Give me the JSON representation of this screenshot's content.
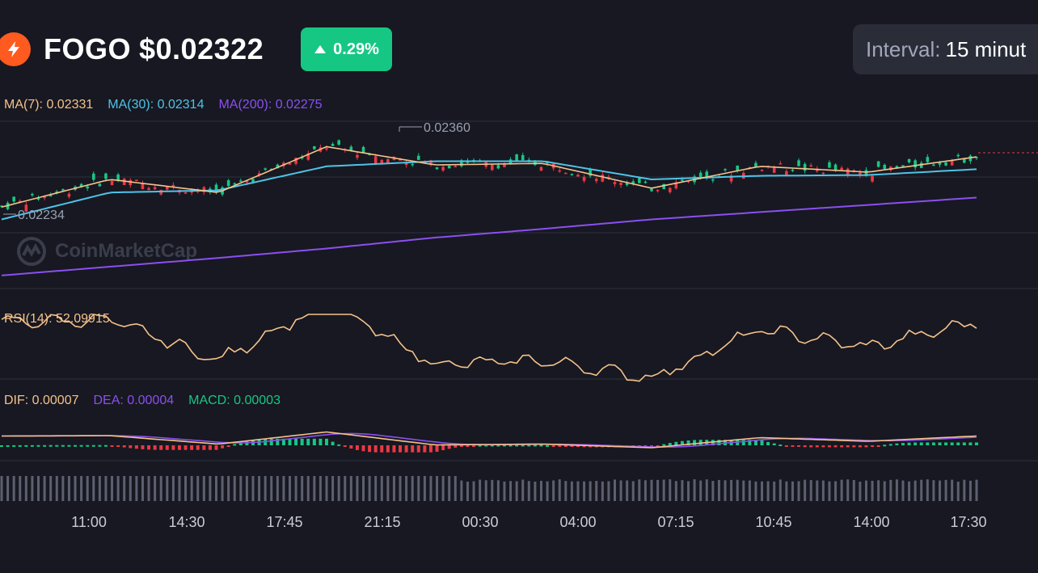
{
  "header": {
    "symbol": "FOGO",
    "price": "$0.02322",
    "change": "0.29%",
    "interval_label": "Interval:",
    "interval_value": "15 minut"
  },
  "legend": {
    "ma7": "MA(7): 0.02331",
    "ma30": "MA(30): 0.02314",
    "ma200": "MA(200): 0.02275",
    "rsi": "RSI(14): 52.09915",
    "dif": "DIF: 0.00007",
    "dea": "DEA: 0.00004",
    "macd": "MACD: 0.00003"
  },
  "price_markers": {
    "high": "0.02360",
    "low": "0.02234"
  },
  "watermark": "CoinMarketCap",
  "x_axis": [
    "11:00",
    "14:30",
    "17:45",
    "21:15",
    "00:30",
    "04:00",
    "07:15",
    "10:45",
    "14:00",
    "17:30"
  ],
  "colors": {
    "background": "#171821",
    "up": "#16c784",
    "down": "#ea3943",
    "ma7": "#f5c28b",
    "ma30": "#4fc3e8",
    "ma200": "#8b4ff0",
    "rsi": "#f5c28b",
    "dif": "#f5c28b",
    "dea": "#8b4ff0",
    "macd": "#16c784",
    "volume": "#5d6070",
    "grid": "#2e3040"
  },
  "icons": {
    "logo": "fogo-logo",
    "change": "triangle-up-icon",
    "watermark": "coinmarketcap-logo"
  },
  "chart_data": {
    "type": "line",
    "ylabel": "",
    "xlabel": "",
    "x": [
      "11:00",
      "14:30",
      "17:45",
      "21:15",
      "00:30",
      "04:00",
      "07:15",
      "10:45",
      "14:00",
      "17:30"
    ],
    "series": [
      {
        "name": "MA(7)",
        "values": [
          0.02262,
          0.023,
          0.02282,
          0.02345,
          0.0232,
          0.02322,
          0.02288,
          0.02318,
          0.0231,
          0.02331
        ]
      },
      {
        "name": "MA(30)",
        "values": [
          0.02245,
          0.02282,
          0.02285,
          0.02318,
          0.02325,
          0.02325,
          0.023,
          0.02305,
          0.02306,
          0.02314
        ]
      },
      {
        "name": "MA(200)",
        "values": [
          0.02168,
          0.0218,
          0.02192,
          0.02205,
          0.0222,
          0.02232,
          0.02245,
          0.02255,
          0.02265,
          0.02275
        ]
      }
    ]
  }
}
